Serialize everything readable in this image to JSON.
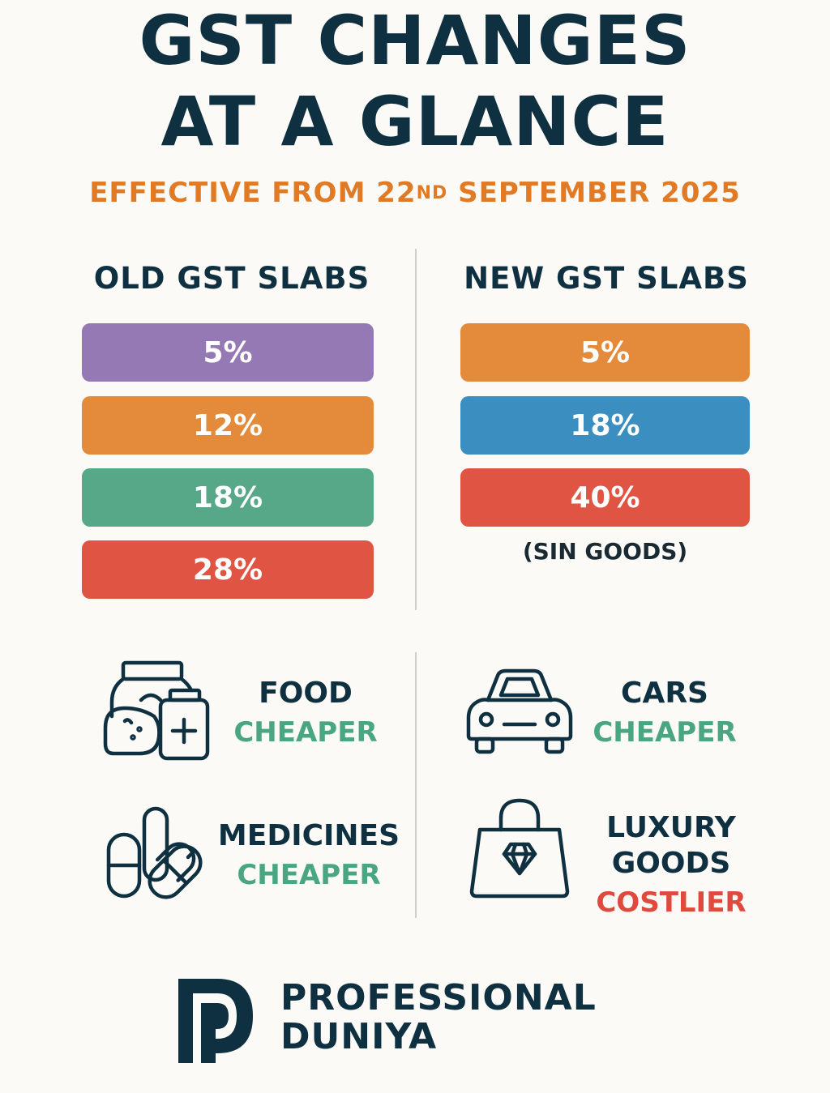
{
  "header": {
    "title_line1": "GST CHANGES",
    "title_line2": "AT A GLANCE",
    "subtitle_prefix": "EFFECTIVE FROM 22",
    "subtitle_sup": "ND",
    "subtitle_suffix": " SEPTEMBER 2025"
  },
  "old_slabs": {
    "heading": "OLD GST SLABS",
    "items": [
      {
        "label": "5%",
        "color": "#9479b4"
      },
      {
        "label": "12%",
        "color": "#e38b3a"
      },
      {
        "label": "18%",
        "color": "#56a889"
      },
      {
        "label": "28%",
        "color": "#e05443"
      }
    ]
  },
  "new_slabs": {
    "heading": "NEW GST SLABS",
    "items": [
      {
        "label": "5%",
        "color": "#e38b3a"
      },
      {
        "label": "18%",
        "color": "#3a8ec0"
      },
      {
        "label": "40%",
        "color": "#e05443"
      }
    ],
    "note": "(SIN GOODS)"
  },
  "impacts": [
    {
      "name": "FOOD",
      "effect": "CHEAPER",
      "icon": "grocery-icon",
      "effect_color": "#4aa583"
    },
    {
      "name": "CARS",
      "effect": "CHEAPER",
      "icon": "car-icon",
      "effect_color": "#4aa583"
    },
    {
      "name": "MEDICINES",
      "effect": "CHEAPER",
      "icon": "pills-icon",
      "effect_color": "#4aa583"
    },
    {
      "name_line1": "LUXURY",
      "name_line2": "GOODS",
      "effect": "COSTLIER",
      "icon": "diamond-bag-icon",
      "effect_color": "#e04a3c"
    }
  ],
  "brand": {
    "line1": "PROFESSIONAL",
    "line2": "DUNIYA",
    "logo_icon": "pd-logo-icon"
  }
}
